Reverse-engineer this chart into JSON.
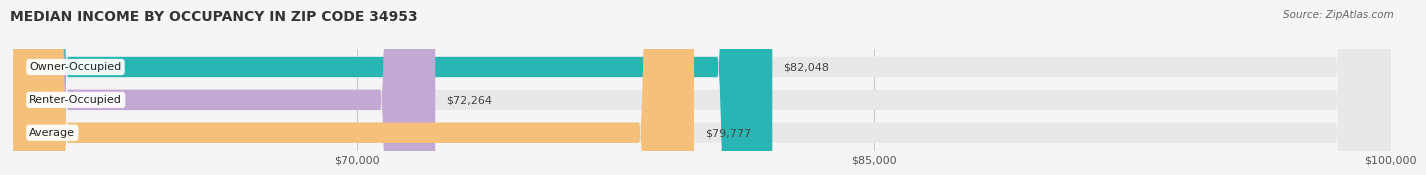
{
  "title": "MEDIAN INCOME BY OCCUPANCY IN ZIP CODE 34953",
  "source": "Source: ZipAtlas.com",
  "categories": [
    "Owner-Occupied",
    "Renter-Occupied",
    "Average"
  ],
  "values": [
    82048,
    72264,
    79777
  ],
  "bar_colors": [
    "#2ab5b5",
    "#c4a8d4",
    "#f5c07a"
  ],
  "bar_bg_color": "#e8e8e8",
  "labels": [
    "$82,048",
    "$72,264",
    "$79,777"
  ],
  "x_min": 60000,
  "x_max": 100000,
  "x_ticks": [
    70000,
    85000,
    100000
  ],
  "x_tick_labels": [
    "$70,000",
    "$85,000",
    "$100,000"
  ],
  "title_fontsize": 10,
  "source_fontsize": 7.5,
  "label_fontsize": 8,
  "bar_label_fontsize": 8,
  "background_color": "#f5f5f5",
  "bar_height": 0.62,
  "grid_color": "#cccccc"
}
